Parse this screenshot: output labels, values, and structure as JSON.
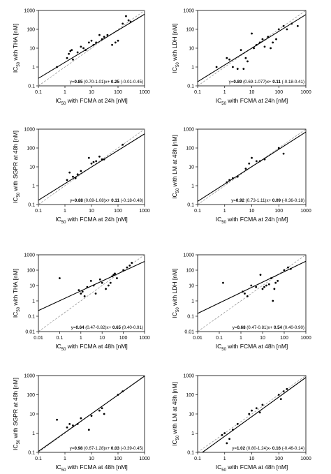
{
  "chart_data": [
    {
      "type": "scatter",
      "xlabel": "IC50 with FCMA at 24h [nM]",
      "ylabel": "IC50 with THA [nM]",
      "xticks": [
        "0.1",
        "1",
        "10",
        "100",
        "1000"
      ],
      "yticks": [
        "0.1",
        "1",
        "10",
        "100",
        "1000"
      ],
      "xlim": [
        0.1,
        1000
      ],
      "ylim": [
        0.1,
        1000
      ],
      "log_scale": true,
      "regression": {
        "slope": 0.85,
        "slope_ci": "(0.70-1.01)",
        "intercept": 0.25,
        "intercept_ci": "(-0.01-0.45)"
      },
      "equation": {
        "prefix": "y=",
        "slope": "0.85",
        "slope_ci": " (0.70-1.01)x+ ",
        "intercept": "0.25",
        "intercept_ci": " (-0.01-0.45)"
      },
      "points": [
        [
          0.5,
          1
        ],
        [
          1.2,
          3
        ],
        [
          1.4,
          5
        ],
        [
          1.6,
          7
        ],
        [
          1.8,
          8
        ],
        [
          2,
          2.5
        ],
        [
          3,
          6
        ],
        [
          4,
          12
        ],
        [
          5,
          10
        ],
        [
          6,
          8
        ],
        [
          8,
          20
        ],
        [
          10,
          25
        ],
        [
          12,
          15
        ],
        [
          15,
          20
        ],
        [
          20,
          50
        ],
        [
          25,
          30
        ],
        [
          30,
          40
        ],
        [
          40,
          50
        ],
        [
          60,
          15
        ],
        [
          80,
          20
        ],
        [
          100,
          25
        ],
        [
          150,
          200
        ],
        [
          200,
          500
        ],
        [
          250,
          300
        ],
        [
          300,
          250
        ]
      ]
    },
    {
      "type": "scatter",
      "xlabel": "IC50 with FCMA at 24h [nM]",
      "ylabel": "IC50 with LDH [nM]",
      "xticks": [
        "0.1",
        "1",
        "10",
        "100",
        "1000"
      ],
      "yticks": [
        "0.1",
        "1",
        "10",
        "100",
        "1000"
      ],
      "xlim": [
        0.1,
        1000
      ],
      "ylim": [
        0.1,
        1000
      ],
      "log_scale": true,
      "regression": {
        "slope": 0.89,
        "slope_ci": "(0.69-1.077)",
        "intercept": 0.11,
        "intercept_ci": "(-0.18-0.41)"
      },
      "equation": {
        "prefix": "y=",
        "slope": "0.89",
        "slope_ci": " (0.69-1.077)x+ ",
        "intercept": "0.11",
        "intercept_ci": " (-0.18-0.41)"
      },
      "points": [
        [
          0.5,
          1
        ],
        [
          1.2,
          3
        ],
        [
          1.5,
          2.5
        ],
        [
          2,
          1
        ],
        [
          3,
          0.8
        ],
        [
          4,
          8
        ],
        [
          5,
          0.8
        ],
        [
          6,
          3
        ],
        [
          7,
          2
        ],
        [
          10,
          60
        ],
        [
          12,
          10
        ],
        [
          15,
          15
        ],
        [
          20,
          20
        ],
        [
          25,
          30
        ],
        [
          30,
          12
        ],
        [
          40,
          40
        ],
        [
          50,
          10
        ],
        [
          60,
          20
        ],
        [
          80,
          30
        ],
        [
          100,
          100
        ],
        [
          150,
          150
        ],
        [
          200,
          100
        ],
        [
          300,
          200
        ],
        [
          500,
          150
        ]
      ]
    },
    {
      "type": "scatter",
      "xlabel": "IC50 with FCMA at 24h [nM]",
      "ylabel": "IC50 with SGPR at 48h [nM]",
      "xticks": [
        "0.1",
        "1",
        "10",
        "100",
        "1000"
      ],
      "yticks": [
        "0.1",
        "1",
        "10",
        "100",
        "1000"
      ],
      "xlim": [
        0.1,
        1000
      ],
      "ylim": [
        0.1,
        1000
      ],
      "log_scale": true,
      "regression": {
        "slope": 0.88,
        "slope_ci": "(0.69-1.08)",
        "intercept": 0.11,
        "intercept_ci": "(-0.18-0.48)"
      },
      "equation": {
        "prefix": "y=",
        "slope": "0.88",
        "slope_ci": " (0.69-1.08)x+ ",
        "intercept": "0.11",
        "intercept_ci": " (-0.18-0.48)"
      },
      "points": [
        [
          1.2,
          2
        ],
        [
          1.5,
          5
        ],
        [
          2,
          3
        ],
        [
          2.5,
          2.5
        ],
        [
          3,
          4
        ],
        [
          4,
          6
        ],
        [
          8,
          30
        ],
        [
          10,
          15
        ],
        [
          12,
          18
        ],
        [
          15,
          20
        ],
        [
          20,
          35
        ],
        [
          25,
          25
        ],
        [
          30,
          25
        ],
        [
          150,
          150
        ]
      ]
    },
    {
      "type": "scatter",
      "xlabel": "IC50 with FCMA at 24h [nM]",
      "ylabel": "IC50 with LM at 48h [nM]",
      "xticks": [
        "0.1",
        "1",
        "10",
        "100",
        "1000"
      ],
      "yticks": [
        "0.1",
        "1",
        "10",
        "100",
        "1000"
      ],
      "xlim": [
        0.1,
        1000
      ],
      "ylim": [
        0.1,
        1000
      ],
      "log_scale": true,
      "regression": {
        "slope": 0.92,
        "slope_ci": "(0.73-1.11)x+",
        "intercept": 0.09,
        "intercept_ci": "(-0.36-0.18)"
      },
      "equation": {
        "prefix": "y=",
        "slope": "0.92",
        "slope_ci": " (0.73-1.11)x+ ",
        "intercept": "0.09",
        "intercept_ci": " (-0.36-0.18)"
      },
      "points": [
        [
          1.2,
          1.5
        ],
        [
          1.5,
          2
        ],
        [
          2,
          2.5
        ],
        [
          3,
          3
        ],
        [
          6,
          8
        ],
        [
          8,
          15
        ],
        [
          10,
          30
        ],
        [
          15,
          20
        ],
        [
          20,
          20
        ],
        [
          30,
          25
        ],
        [
          100,
          100
        ],
        [
          150,
          50
        ]
      ]
    },
    {
      "type": "scatter",
      "xlabel": "IC50 with FCMA at 48h [nM]",
      "ylabel": "IC50 with THA [nM]",
      "xticks": [
        "0.01",
        "0.1",
        "1",
        "10",
        "100",
        "1000"
      ],
      "yticks": [
        "0.01",
        "0.1",
        "1",
        "10",
        "100",
        "1000"
      ],
      "xlim": [
        0.01,
        1000
      ],
      "ylim": [
        0.01,
        1000
      ],
      "log_scale": true,
      "regression": {
        "slope": 0.64,
        "slope_ci": "(0.47-0.82)",
        "intercept": 0.65,
        "intercept_ci": "(0.40-0.91)"
      },
      "equation": {
        "prefix": "y=",
        "slope": "0.64",
        "slope_ci": " (0.47-0.82)x+ ",
        "intercept": "0.65",
        "intercept_ci": " (0.40-0.91)"
      },
      "points": [
        [
          0.1,
          30
        ],
        [
          0.8,
          5
        ],
        [
          1,
          3
        ],
        [
          1.2,
          4
        ],
        [
          1.5,
          2
        ],
        [
          2,
          8
        ],
        [
          3,
          20
        ],
        [
          4,
          10
        ],
        [
          5,
          3
        ],
        [
          8,
          25
        ],
        [
          10,
          15
        ],
        [
          15,
          6
        ],
        [
          20,
          10
        ],
        [
          25,
          15
        ],
        [
          30,
          40
        ],
        [
          35,
          50
        ],
        [
          40,
          60
        ],
        [
          50,
          30
        ],
        [
          100,
          100
        ],
        [
          150,
          150
        ],
        [
          200,
          200
        ],
        [
          250,
          300
        ]
      ]
    },
    {
      "type": "scatter",
      "xlabel": "IC50 with FCMA at 48h [nM]",
      "ylabel": "IC50 with LDH [nM]",
      "xticks": [
        "0.01",
        "0.1",
        "1",
        "10",
        "100",
        "1000"
      ],
      "yticks": [
        "0.01",
        "0.1",
        "1",
        "10",
        "100",
        "1000"
      ],
      "xlim": [
        0.01,
        1000
      ],
      "ylim": [
        0.01,
        1000
      ],
      "log_scale": true,
      "regression": {
        "slope": 0.68,
        "slope_ci": "(0.47-0.81)",
        "intercept": 0.54,
        "intercept_ci": "(0.40-0.90)"
      },
      "equation": {
        "prefix": "y=",
        "slope": "0.68",
        "slope_ci": " (0.47-0.81)x+ ",
        "intercept": "0.54",
        "intercept_ci": " (0.40-0.90)"
      },
      "points": [
        [
          0.15,
          15
        ],
        [
          1.2,
          4
        ],
        [
          1.5,
          3
        ],
        [
          2,
          2
        ],
        [
          3,
          10
        ],
        [
          5,
          8
        ],
        [
          8,
          50
        ],
        [
          10,
          6
        ],
        [
          12,
          8
        ],
        [
          15,
          10
        ],
        [
          20,
          12
        ],
        [
          25,
          30
        ],
        [
          30,
          1
        ],
        [
          35,
          6
        ],
        [
          40,
          15
        ],
        [
          50,
          20
        ],
        [
          100,
          100
        ],
        [
          150,
          150
        ],
        [
          200,
          120
        ]
      ]
    },
    {
      "type": "scatter",
      "xlabel": "IC50 with FCMA at 48h [nM]",
      "ylabel": "IC50 with SGPR at 48h [nM]",
      "xticks": [
        "0.1",
        "1",
        "10",
        "100",
        "1000"
      ],
      "yticks": [
        "0.1",
        "1",
        "10",
        "100",
        "1000"
      ],
      "xlim": [
        0.1,
        1000
      ],
      "ylim": [
        0.1,
        1000
      ],
      "log_scale": true,
      "regression": {
        "slope": 0.98,
        "slope_ci": "(0.67-1.28)",
        "intercept": 0.03,
        "intercept_ci": "(-0.39-0.45)"
      },
      "equation": {
        "prefix": "y=",
        "slope": "0.98",
        "slope_ci": " (0.67-1.28)x+ ",
        "intercept": "0.03",
        "intercept_ci": " (-0.39-0.45)"
      },
      "points": [
        [
          0.5,
          5
        ],
        [
          1.2,
          2
        ],
        [
          1.5,
          3
        ],
        [
          2,
          2.5
        ],
        [
          3,
          3
        ],
        [
          4,
          6
        ],
        [
          8,
          1.5
        ],
        [
          10,
          8
        ],
        [
          20,
          15
        ],
        [
          25,
          20
        ],
        [
          30,
          10
        ],
        [
          100,
          100
        ],
        [
          150,
          150
        ]
      ]
    },
    {
      "type": "scatter",
      "xlabel": "IC50 with FCMA at 48h [nM]",
      "ylabel": "IC50 with LM at 48h [nM]",
      "xticks": [
        "0.1",
        "1",
        "10",
        "100",
        "1000"
      ],
      "yticks": [
        "0.1",
        "1",
        "10",
        "100",
        "1000"
      ],
      "xlim": [
        0.1,
        1000
      ],
      "ylim": [
        0.1,
        1000
      ],
      "log_scale": true,
      "regression": {
        "slope": 1.02,
        "slope_ci": "(0.80-1.24)",
        "intercept": -0.16,
        "intercept_ci": "(-0.46-0.14)"
      },
      "equation": {
        "prefix": "y=",
        "slope": "1.02",
        "slope_ci": " (0.80-1.24)x- ",
        "intercept": "0.16",
        "intercept_ci": " (-0.46-0.14)"
      },
      "points": [
        [
          0.8,
          0.8
        ],
        [
          1,
          1
        ],
        [
          1.2,
          0.3
        ],
        [
          1.5,
          0.5
        ],
        [
          2,
          1.5
        ],
        [
          3,
          3
        ],
        [
          8,
          10
        ],
        [
          10,
          15
        ],
        [
          15,
          20
        ],
        [
          20,
          12
        ],
        [
          25,
          30
        ],
        [
          100,
          100
        ],
        [
          120,
          60
        ],
        [
          150,
          150
        ],
        [
          200,
          200
        ]
      ]
    }
  ]
}
